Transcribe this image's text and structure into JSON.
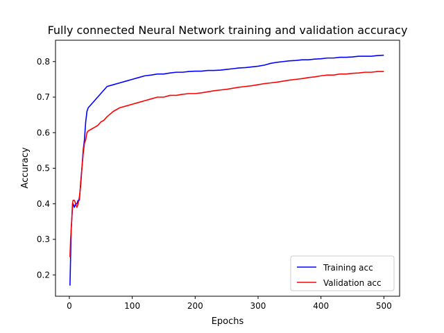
{
  "chart_data": {
    "type": "line",
    "title": "Fully connected Neural Network training and validation accuracy",
    "xlabel": "Epochs",
    "ylabel": "Accuracy",
    "xlim": [
      -22,
      525
    ],
    "ylim": [
      0.14,
      0.86
    ],
    "xticks": [
      0,
      100,
      200,
      300,
      400,
      500
    ],
    "yticks": [
      0.2,
      0.3,
      0.4,
      0.5,
      0.6,
      0.7,
      0.8
    ],
    "grid": false,
    "legend_position": "lower-right",
    "series": [
      {
        "name": "Training acc",
        "color": "#0000ff",
        "x": [
          1,
          2,
          3,
          4,
          5,
          6,
          8,
          10,
          12,
          14,
          16,
          18,
          20,
          22,
          24,
          26,
          28,
          30,
          35,
          40,
          45,
          50,
          55,
          60,
          70,
          80,
          90,
          100,
          110,
          120,
          130,
          140,
          150,
          160,
          170,
          180,
          190,
          200,
          210,
          220,
          230,
          240,
          250,
          260,
          270,
          280,
          290,
          300,
          310,
          320,
          330,
          340,
          350,
          360,
          370,
          380,
          390,
          400,
          410,
          420,
          430,
          440,
          450,
          460,
          470,
          480,
          490,
          500
        ],
        "y": [
          0.17,
          0.25,
          0.33,
          0.36,
          0.39,
          0.4,
          0.39,
          0.4,
          0.4,
          0.41,
          0.41,
          0.46,
          0.5,
          0.55,
          0.58,
          0.63,
          0.66,
          0.67,
          0.68,
          0.69,
          0.7,
          0.71,
          0.72,
          0.73,
          0.735,
          0.74,
          0.745,
          0.75,
          0.755,
          0.76,
          0.762,
          0.765,
          0.765,
          0.768,
          0.77,
          0.77,
          0.772,
          0.773,
          0.773,
          0.775,
          0.775,
          0.776,
          0.778,
          0.78,
          0.782,
          0.783,
          0.785,
          0.787,
          0.79,
          0.795,
          0.798,
          0.8,
          0.802,
          0.803,
          0.805,
          0.805,
          0.807,
          0.808,
          0.81,
          0.81,
          0.812,
          0.812,
          0.813,
          0.815,
          0.815,
          0.815,
          0.817,
          0.818
        ]
      },
      {
        "name": "Validation acc",
        "color": "#ff0000",
        "x": [
          1,
          2,
          3,
          4,
          5,
          6,
          8,
          10,
          12,
          14,
          16,
          18,
          20,
          22,
          24,
          26,
          28,
          30,
          35,
          40,
          45,
          50,
          55,
          60,
          70,
          80,
          90,
          100,
          110,
          120,
          130,
          140,
          150,
          160,
          170,
          180,
          190,
          200,
          210,
          220,
          230,
          240,
          250,
          260,
          270,
          280,
          290,
          300,
          310,
          320,
          330,
          340,
          350,
          360,
          370,
          380,
          390,
          400,
          410,
          420,
          430,
          440,
          450,
          460,
          470,
          480,
          490,
          500
        ],
        "y": [
          0.25,
          0.3,
          0.33,
          0.36,
          0.4,
          0.41,
          0.41,
          0.4,
          0.39,
          0.4,
          0.42,
          0.45,
          0.5,
          0.54,
          0.57,
          0.58,
          0.6,
          0.605,
          0.61,
          0.615,
          0.62,
          0.63,
          0.635,
          0.645,
          0.66,
          0.67,
          0.675,
          0.68,
          0.685,
          0.69,
          0.695,
          0.7,
          0.7,
          0.705,
          0.705,
          0.708,
          0.71,
          0.71,
          0.712,
          0.715,
          0.718,
          0.72,
          0.722,
          0.725,
          0.728,
          0.73,
          0.732,
          0.735,
          0.738,
          0.74,
          0.742,
          0.745,
          0.748,
          0.75,
          0.752,
          0.755,
          0.757,
          0.76,
          0.762,
          0.762,
          0.765,
          0.765,
          0.767,
          0.768,
          0.77,
          0.77,
          0.772,
          0.772
        ]
      }
    ]
  }
}
